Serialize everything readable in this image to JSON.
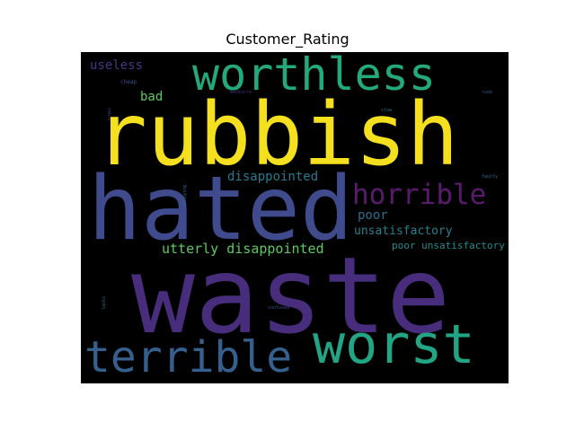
{
  "title": "Customer_Rating",
  "words": [
    {
      "text": "rubbish",
      "color": "#f4e01e"
    },
    {
      "text": "waste",
      "color": "#472d7b"
    },
    {
      "text": "hated",
      "color": "#3f4b8d"
    },
    {
      "text": "worthless",
      "color": "#24a97b"
    },
    {
      "text": "worst",
      "color": "#22a584"
    },
    {
      "text": "terrible",
      "color": "#35608d"
    },
    {
      "text": "horrible",
      "color": "#5b1a6e"
    },
    {
      "text": "utterly disappointed",
      "color": "#5ec962"
    },
    {
      "text": "disappointed",
      "color": "#2a788e"
    },
    {
      "text": "poor",
      "color": "#2e6e8e"
    },
    {
      "text": "unsatisfactory",
      "color": "#277f8e"
    },
    {
      "text": "poor unsatisfactory",
      "color": "#238a8d"
    },
    {
      "text": "useless",
      "color": "#443983"
    },
    {
      "text": "bad",
      "color": "#5ec962"
    },
    {
      "text": "cheap",
      "color": "#3b528b"
    },
    {
      "text": "mediocre",
      "color": "#46327e"
    },
    {
      "text": "slow",
      "color": "#2c728e"
    },
    {
      "text": "rude",
      "color": "#3b528b"
    },
    {
      "text": "broken",
      "color": "#3b528b"
    },
    {
      "text": "faulty",
      "color": "#2e6e8e"
    },
    {
      "text": "lacks",
      "color": "#2e6e8e"
    },
    {
      "text": "confused",
      "color": "#3f4b8d"
    },
    {
      "text": "annoying",
      "color": "#2c728e"
    }
  ]
}
